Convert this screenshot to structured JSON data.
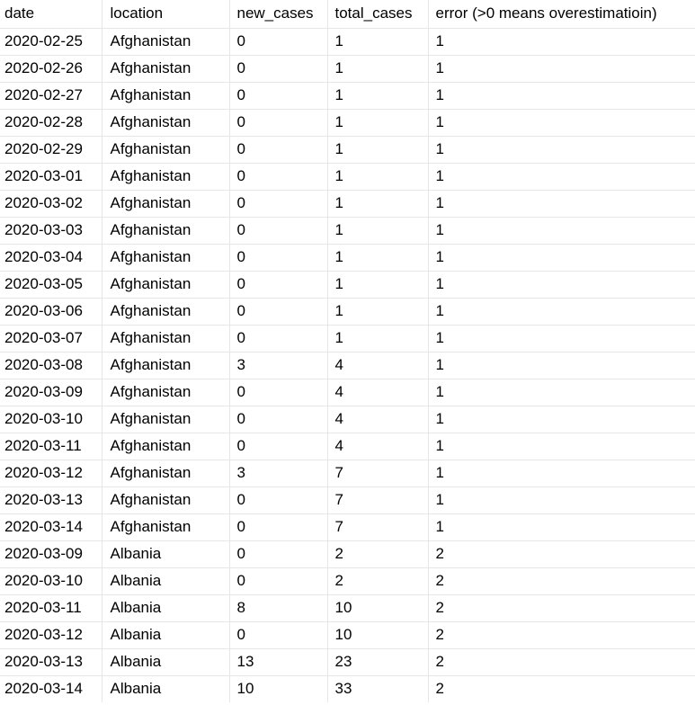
{
  "table": {
    "headers": {
      "date": "date",
      "location": "location",
      "new_cases": "new_cases",
      "total_cases": "total_cases",
      "error": "error (>0 means overestimatioin)"
    },
    "rows": [
      {
        "date": "2020-02-25",
        "location": "Afghanistan",
        "new_cases": "0",
        "total_cases": "1",
        "error": "1"
      },
      {
        "date": "2020-02-26",
        "location": "Afghanistan",
        "new_cases": "0",
        "total_cases": "1",
        "error": "1"
      },
      {
        "date": "2020-02-27",
        "location": "Afghanistan",
        "new_cases": "0",
        "total_cases": "1",
        "error": "1"
      },
      {
        "date": "2020-02-28",
        "location": "Afghanistan",
        "new_cases": "0",
        "total_cases": "1",
        "error": "1"
      },
      {
        "date": "2020-02-29",
        "location": "Afghanistan",
        "new_cases": "0",
        "total_cases": "1",
        "error": "1"
      },
      {
        "date": "2020-03-01",
        "location": "Afghanistan",
        "new_cases": "0",
        "total_cases": "1",
        "error": "1"
      },
      {
        "date": "2020-03-02",
        "location": "Afghanistan",
        "new_cases": "0",
        "total_cases": "1",
        "error": "1"
      },
      {
        "date": "2020-03-03",
        "location": "Afghanistan",
        "new_cases": "0",
        "total_cases": "1",
        "error": "1"
      },
      {
        "date": "2020-03-04",
        "location": "Afghanistan",
        "new_cases": "0",
        "total_cases": "1",
        "error": "1"
      },
      {
        "date": "2020-03-05",
        "location": "Afghanistan",
        "new_cases": "0",
        "total_cases": "1",
        "error": "1"
      },
      {
        "date": "2020-03-06",
        "location": "Afghanistan",
        "new_cases": "0",
        "total_cases": "1",
        "error": "1"
      },
      {
        "date": "2020-03-07",
        "location": "Afghanistan",
        "new_cases": "0",
        "total_cases": "1",
        "error": "1"
      },
      {
        "date": "2020-03-08",
        "location": "Afghanistan",
        "new_cases": "3",
        "total_cases": "4",
        "error": "1"
      },
      {
        "date": "2020-03-09",
        "location": "Afghanistan",
        "new_cases": "0",
        "total_cases": "4",
        "error": "1"
      },
      {
        "date": "2020-03-10",
        "location": "Afghanistan",
        "new_cases": "0",
        "total_cases": "4",
        "error": "1"
      },
      {
        "date": "2020-03-11",
        "location": "Afghanistan",
        "new_cases": "0",
        "total_cases": "4",
        "error": "1"
      },
      {
        "date": "2020-03-12",
        "location": "Afghanistan",
        "new_cases": "3",
        "total_cases": "7",
        "error": "1"
      },
      {
        "date": "2020-03-13",
        "location": "Afghanistan",
        "new_cases": "0",
        "total_cases": "7",
        "error": "1"
      },
      {
        "date": "2020-03-14",
        "location": "Afghanistan",
        "new_cases": "0",
        "total_cases": "7",
        "error": "1"
      },
      {
        "date": "2020-03-09",
        "location": "Albania",
        "new_cases": "0",
        "total_cases": "2",
        "error": "2"
      },
      {
        "date": "2020-03-10",
        "location": "Albania",
        "new_cases": "0",
        "total_cases": "2",
        "error": "2"
      },
      {
        "date": "2020-03-11",
        "location": "Albania",
        "new_cases": "8",
        "total_cases": "10",
        "error": "2"
      },
      {
        "date": "2020-03-12",
        "location": "Albania",
        "new_cases": "0",
        "total_cases": "10",
        "error": "2"
      },
      {
        "date": "2020-03-13",
        "location": "Albania",
        "new_cases": "13",
        "total_cases": "23",
        "error": "2"
      },
      {
        "date": "2020-03-14",
        "location": "Albania",
        "new_cases": "10",
        "total_cases": "33",
        "error": "2"
      }
    ]
  }
}
